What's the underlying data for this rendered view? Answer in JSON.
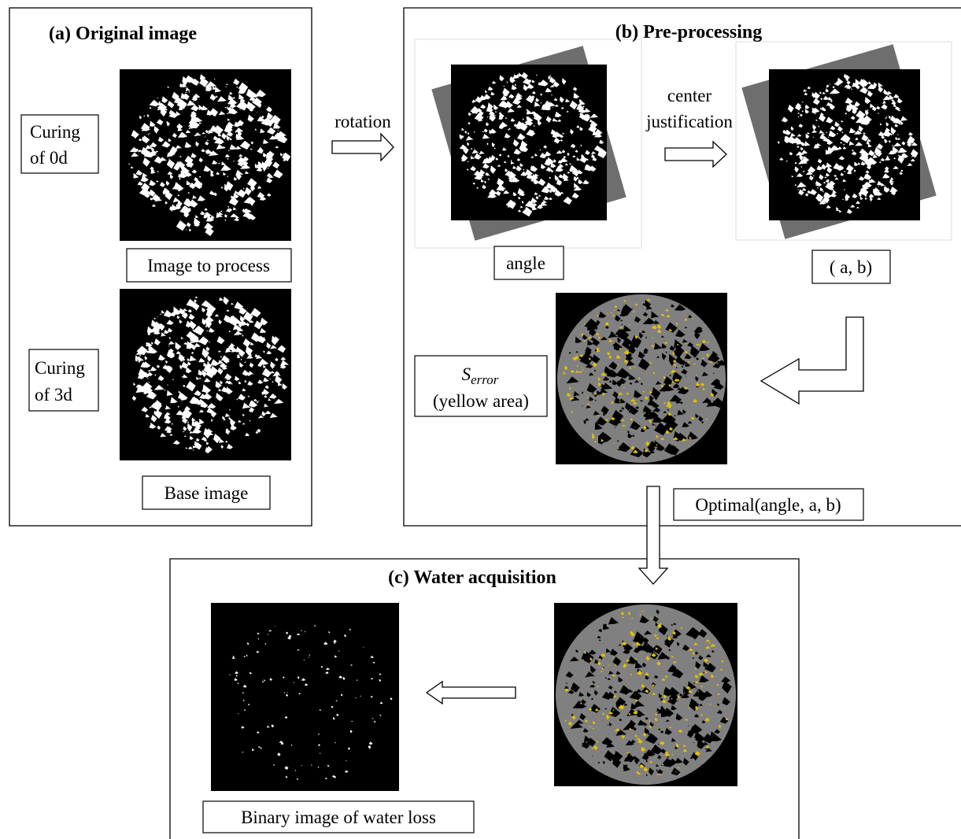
{
  "panels": {
    "a": {
      "title": "(a) Original image",
      "curing_0d": {
        "lines": [
          "Curing",
          "of 0d"
        ]
      },
      "image_to_process": "Image to process",
      "curing_3d": {
        "lines": [
          "Curing",
          "of 3d"
        ]
      },
      "base_image": "Base image"
    },
    "b": {
      "title": "(b) Pre-processing",
      "rotation": "rotation",
      "center_justification": {
        "lines": [
          "center",
          "justification"
        ]
      },
      "angle": "angle",
      "offset": "( a, b)",
      "error": {
        "symbol": "S",
        "subscript": "error",
        "note": "(yellow area)"
      },
      "optimal": "Optimal(angle, a, b)"
    },
    "c": {
      "title": "(c) Water acquisition",
      "binary_image": "Binary image of water loss"
    }
  }
}
